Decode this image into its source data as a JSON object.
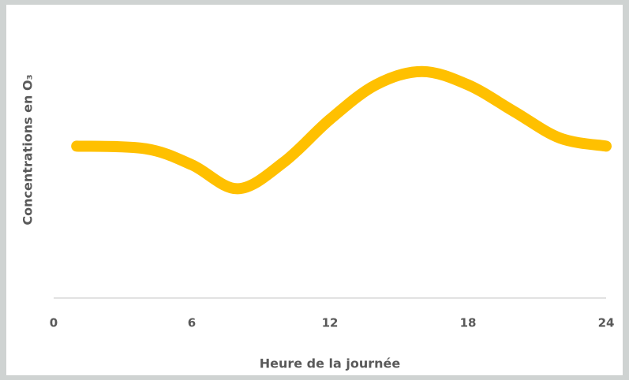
{
  "chart_data": {
    "type": "line",
    "x_label": "Heure de la journée",
    "y_label": "Concentrations en O₃",
    "x": [
      1,
      4,
      6,
      8,
      10,
      12,
      14,
      16,
      18,
      20,
      22,
      24
    ],
    "series": [
      {
        "color": "#ffc000",
        "values": [
          57,
          56,
          50,
          41,
          51,
          67,
          80,
          85,
          80,
          70,
          60,
          57
        ]
      }
    ],
    "xlim": [
      0,
      24
    ],
    "xticks": [
      0,
      6,
      12,
      18,
      24
    ],
    "ylim": [
      0,
      100
    ]
  }
}
